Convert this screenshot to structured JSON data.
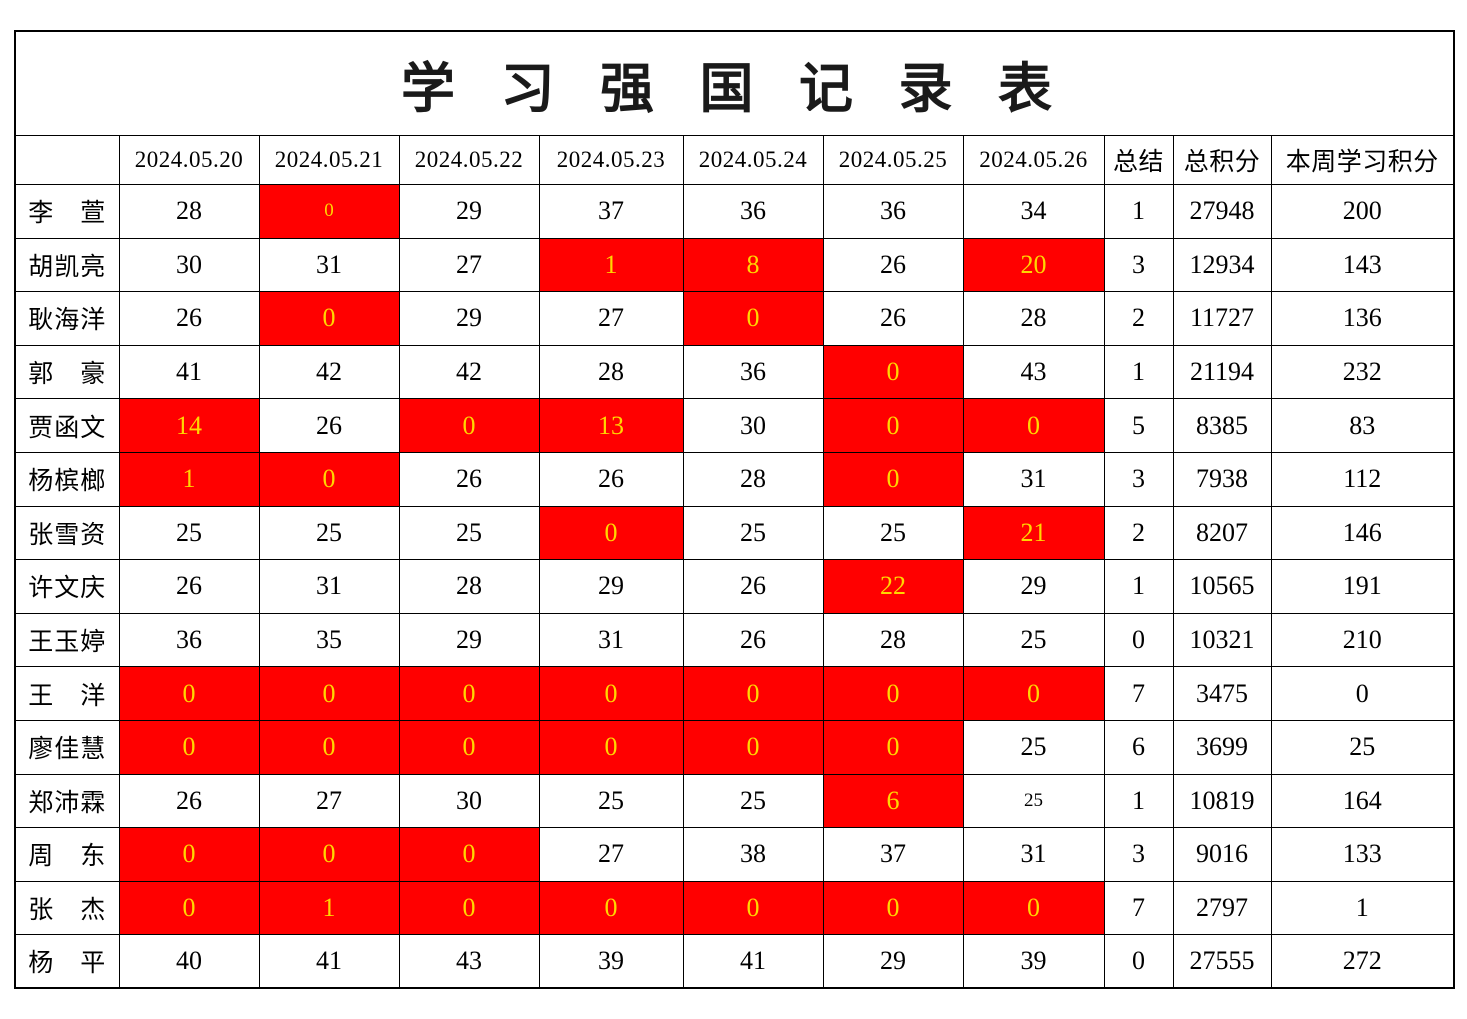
{
  "title": "学 习 强 国 记 录 表",
  "colors": {
    "highlight_bg": "#ff0000",
    "highlight_text": "#ffd700",
    "accent_text": "#ff0000",
    "grid": "#000000"
  },
  "header": {
    "name_col": "",
    "dates": [
      "2024.05.20",
      "2024.05.21",
      "2024.05.22",
      "2024.05.23",
      "2024.05.24",
      "2024.05.25",
      "2024.05.26"
    ],
    "summary": "总结",
    "total": "总积分",
    "week": "本周学习积分"
  },
  "rows": [
    {
      "name": "李　萱",
      "cells": [
        {
          "v": "28"
        },
        {
          "v": "0",
          "hl": true,
          "small": true
        },
        {
          "v": "29"
        },
        {
          "v": "37"
        },
        {
          "v": "36"
        },
        {
          "v": "36"
        },
        {
          "v": "34"
        }
      ],
      "summary": "1",
      "total": "27948",
      "week": "200"
    },
    {
      "name": "胡凯亮",
      "cells": [
        {
          "v": "30"
        },
        {
          "v": "31"
        },
        {
          "v": "27"
        },
        {
          "v": "1",
          "hl": true
        },
        {
          "v": "8",
          "hl": true
        },
        {
          "v": "26"
        },
        {
          "v": "20",
          "hl": true
        }
      ],
      "summary": "3",
      "total": "12934",
      "week": "143"
    },
    {
      "name": "耿海洋",
      "cells": [
        {
          "v": "26"
        },
        {
          "v": "0",
          "hl": true
        },
        {
          "v": "29"
        },
        {
          "v": "27"
        },
        {
          "v": "0",
          "hl": true
        },
        {
          "v": "26"
        },
        {
          "v": "28"
        }
      ],
      "summary": "2",
      "total": "11727",
      "week": "136"
    },
    {
      "name": "郭　豪",
      "cells": [
        {
          "v": "41"
        },
        {
          "v": "42"
        },
        {
          "v": "42"
        },
        {
          "v": "28"
        },
        {
          "v": "36"
        },
        {
          "v": "0",
          "hl": true
        },
        {
          "v": "43"
        }
      ],
      "summary": "1",
      "total": "21194",
      "week": "232"
    },
    {
      "name": "贾函文",
      "cells": [
        {
          "v": "14",
          "hl": true
        },
        {
          "v": "26"
        },
        {
          "v": "0",
          "hl": true
        },
        {
          "v": "13",
          "hl": true
        },
        {
          "v": "30"
        },
        {
          "v": "0",
          "hl": true
        },
        {
          "v": "0",
          "hl": true
        }
      ],
      "summary": "5",
      "total": "8385",
      "week": "83"
    },
    {
      "name": "杨槟榔",
      "cells": [
        {
          "v": "1",
          "hl": true
        },
        {
          "v": "0",
          "hl": true
        },
        {
          "v": "26"
        },
        {
          "v": "26"
        },
        {
          "v": "28"
        },
        {
          "v": "0",
          "hl": true
        },
        {
          "v": "31"
        }
      ],
      "summary": "3",
      "total": "7938",
      "week": "112"
    },
    {
      "name": "张雪资",
      "cells": [
        {
          "v": "25"
        },
        {
          "v": "25"
        },
        {
          "v": "25"
        },
        {
          "v": "0",
          "hl": true
        },
        {
          "v": "25"
        },
        {
          "v": "25"
        },
        {
          "v": "21",
          "hl": true
        }
      ],
      "summary": "2",
      "total": "8207",
      "week": "146"
    },
    {
      "name": "许文庆",
      "cells": [
        {
          "v": "26"
        },
        {
          "v": "31"
        },
        {
          "v": "28"
        },
        {
          "v": "29"
        },
        {
          "v": "26"
        },
        {
          "v": "22",
          "hl": true
        },
        {
          "v": "29"
        }
      ],
      "summary": "1",
      "total": "10565",
      "week": "191"
    },
    {
      "name": "王玉婷",
      "cells": [
        {
          "v": "36"
        },
        {
          "v": "35"
        },
        {
          "v": "29"
        },
        {
          "v": "31"
        },
        {
          "v": "26"
        },
        {
          "v": "28"
        },
        {
          "v": "25"
        }
      ],
      "summary": "0",
      "total": "10321",
      "week": "210"
    },
    {
      "name": "王　洋",
      "cells": [
        {
          "v": "0",
          "hl": true
        },
        {
          "v": "0",
          "hl": true
        },
        {
          "v": "0",
          "hl": true
        },
        {
          "v": "0",
          "hl": true
        },
        {
          "v": "0",
          "hl": true
        },
        {
          "v": "0",
          "hl": true
        },
        {
          "v": "0",
          "hl": true
        }
      ],
      "summary": "7",
      "total": "3475",
      "week": "0"
    },
    {
      "name": "廖佳慧",
      "cells": [
        {
          "v": "0",
          "hl": true
        },
        {
          "v": "0",
          "hl": true
        },
        {
          "v": "0",
          "hl": true
        },
        {
          "v": "0",
          "hl": true
        },
        {
          "v": "0",
          "hl": true
        },
        {
          "v": "0",
          "hl": true
        },
        {
          "v": "25"
        }
      ],
      "summary": "6",
      "total": "3699",
      "week": "25"
    },
    {
      "name": "郑沛霖",
      "cells": [
        {
          "v": "26"
        },
        {
          "v": "27"
        },
        {
          "v": "30"
        },
        {
          "v": "25"
        },
        {
          "v": "25"
        },
        {
          "v": "6",
          "hl": true
        },
        {
          "v": "25",
          "small": true
        }
      ],
      "summary": "1",
      "total": "10819",
      "week": "164"
    },
    {
      "name": "周　东",
      "cells": [
        {
          "v": "0",
          "hl": true
        },
        {
          "v": "0",
          "hl": true
        },
        {
          "v": "0",
          "hl": true
        },
        {
          "v": "27"
        },
        {
          "v": "38"
        },
        {
          "v": "37"
        },
        {
          "v": "31"
        }
      ],
      "summary": "3",
      "total": "9016",
      "week": "133"
    },
    {
      "name": "张　杰",
      "cells": [
        {
          "v": "0",
          "hl": true
        },
        {
          "v": "1",
          "hl": true
        },
        {
          "v": "0",
          "hl": true
        },
        {
          "v": "0",
          "hl": true
        },
        {
          "v": "0",
          "hl": true
        },
        {
          "v": "0",
          "hl": true
        },
        {
          "v": "0",
          "hl": true
        }
      ],
      "summary": "7",
      "total": "2797",
      "week": "1"
    },
    {
      "name": "杨　平",
      "cells": [
        {
          "v": "40"
        },
        {
          "v": "41"
        },
        {
          "v": "43"
        },
        {
          "v": "39"
        },
        {
          "v": "41"
        },
        {
          "v": "29"
        },
        {
          "v": "39"
        }
      ],
      "summary": "0",
      "total": "27555",
      "week": "272"
    }
  ]
}
